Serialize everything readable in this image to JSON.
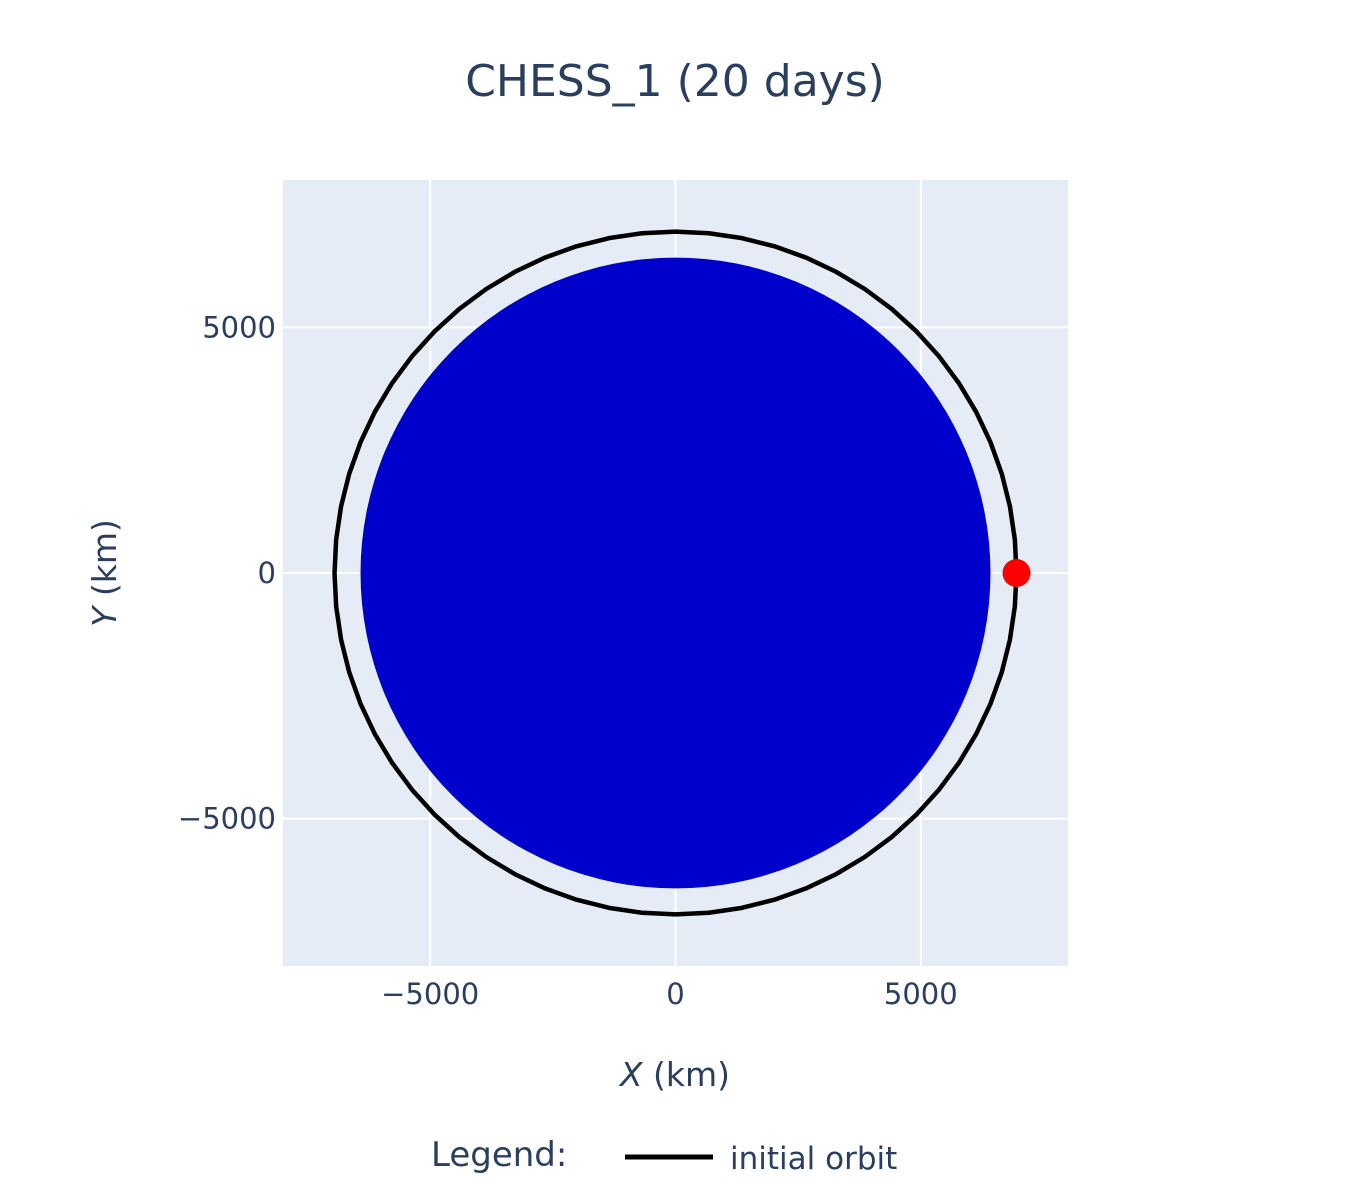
{
  "chart_data": {
    "type": "line",
    "title": "CHESS_1 (20 days)",
    "xlabel_var": "X",
    "xlabel_unit": " (km)",
    "ylabel_var": "Y",
    "ylabel_unit": " (km)",
    "xlim": [
      -8000,
      8000
    ],
    "ylim": [
      -8000,
      8000
    ],
    "xticks": [
      -5000,
      0,
      5000
    ],
    "yticks": [
      -5000,
      0,
      5000
    ],
    "xtick_labels": [
      "−5000",
      "0",
      "5000"
    ],
    "ytick_labels": [
      "−5000",
      "0",
      "5000"
    ],
    "grid": true,
    "legend_position": "bottom",
    "legend": {
      "title": "Legend:",
      "items": [
        {
          "name": "initial orbit",
          "color": "#000000"
        }
      ]
    },
    "earth": {
      "center": [
        0,
        0
      ],
      "radius": 6420,
      "color": "#0000cc"
    },
    "orbit": {
      "center": [
        0,
        0
      ],
      "radius": 6950,
      "color": "#000000"
    },
    "current_position": {
      "x": 6950,
      "y": 0,
      "color": "#ff0000"
    }
  },
  "colors": {
    "plot_background": "#e5ecf6",
    "grid": "#ffffff",
    "text": "#2a3f5f"
  }
}
